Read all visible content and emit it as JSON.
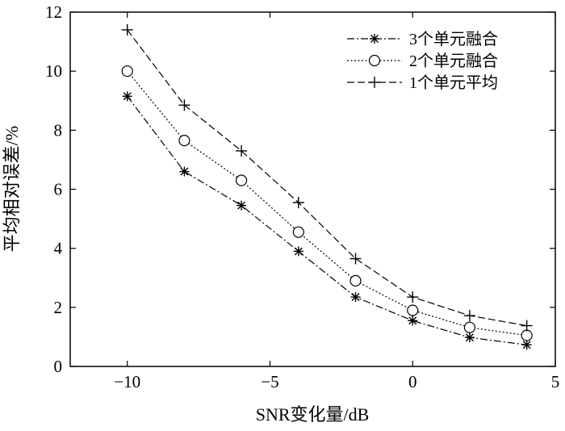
{
  "chart_data": {
    "type": "line",
    "title": "",
    "xlabel": "SNR变化量/dB",
    "ylabel": "平均相对误差/%",
    "xlim": [
      -12,
      5
    ],
    "ylim": [
      0,
      12
    ],
    "xticks": [
      -10,
      -5,
      0,
      5
    ],
    "xtick_labels": [
      "−10",
      "−5",
      "0",
      "5"
    ],
    "yticks": [
      0,
      2,
      4,
      6,
      8,
      10,
      12
    ],
    "ytick_labels": [
      "0",
      "2",
      "4",
      "6",
      "8",
      "10",
      "12"
    ],
    "grid": false,
    "legend_position": "top-right",
    "x": [
      -10,
      -8,
      -6,
      -4,
      -2,
      0,
      2,
      4
    ],
    "series": [
      {
        "name": "3个单元融合",
        "marker": "asterisk",
        "line_style": "dash-dot",
        "values": [
          9.15,
          6.6,
          5.45,
          3.9,
          2.35,
          1.55,
          0.98,
          0.73
        ]
      },
      {
        "name": "2个单元融合",
        "marker": "circle",
        "line_style": "dotted",
        "values": [
          10.0,
          7.65,
          6.3,
          4.55,
          2.9,
          1.9,
          1.32,
          1.05
        ]
      },
      {
        "name": "1个单元平均",
        "marker": "plus",
        "line_style": "dashed",
        "values": [
          11.4,
          8.85,
          7.3,
          5.55,
          3.65,
          2.35,
          1.72,
          1.38
        ]
      }
    ]
  }
}
